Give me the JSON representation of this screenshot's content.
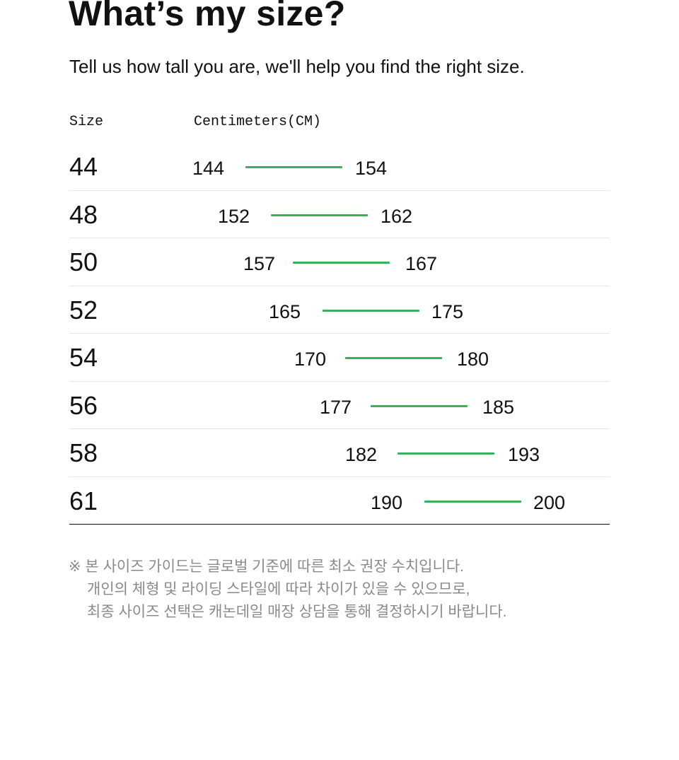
{
  "header": {
    "title": "What’s my size?",
    "subtitle": "Tell us how tall you are, we'll help you find the right size."
  },
  "table": {
    "size_header": "Size",
    "cm_header": "Centimeters(CM)",
    "accent_color": "#3aaf5c",
    "rows": [
      {
        "size": "44",
        "min": "144",
        "max": "154"
      },
      {
        "size": "48",
        "min": "152",
        "max": "162"
      },
      {
        "size": "50",
        "min": "157",
        "max": "167"
      },
      {
        "size": "52",
        "min": "165",
        "max": "175"
      },
      {
        "size": "54",
        "min": "170",
        "max": "180"
      },
      {
        "size": "56",
        "min": "177",
        "max": "185"
      },
      {
        "size": "58",
        "min": "182",
        "max": "193"
      },
      {
        "size": "61",
        "min": "190",
        "max": "200"
      }
    ]
  },
  "note": {
    "lines": [
      "※ 본 사이즈 가이드는 글로벌 기준에 따른 최소 권장 수치입니다.",
      "개인의 체형 및 라이딩 스타일에 따라 차이가 있을 수 있으므로,",
      "최종 사이즈 선택은 캐논데일 매장 상담을 통해 결정하시기 바랍니다."
    ]
  }
}
